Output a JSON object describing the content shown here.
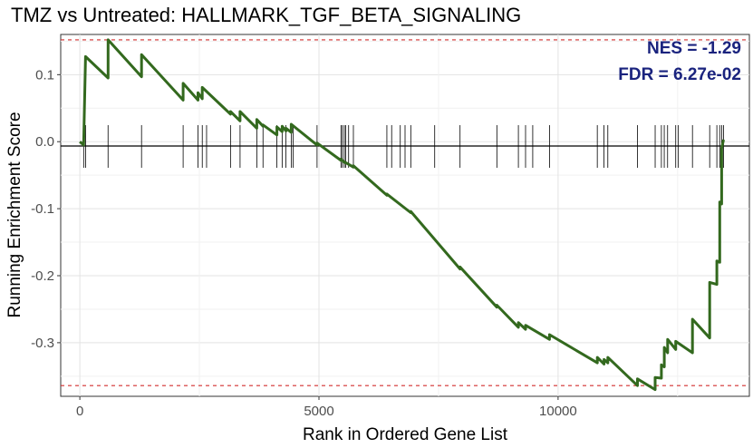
{
  "chart_data": {
    "type": "line",
    "title": "TMZ vs Untreated: HALLMARK_TGF_BETA_SIGNALING",
    "xlabel": "Rank in Ordered Gene List",
    "ylabel": "Running Enrichment Score",
    "xlim": [
      -400,
      14000
    ],
    "ylim": [
      -0.38,
      0.16
    ],
    "x_ticks": [
      0,
      5000,
      10000
    ],
    "x_tick_labels": [
      "0",
      "5000",
      "10000"
    ],
    "y_ticks": [
      0.1,
      0.0,
      -0.1,
      -0.2,
      -0.3
    ],
    "y_tick_labels": [
      "0.1",
      "0.0",
      "-0.1",
      "-0.2",
      "-0.3"
    ],
    "grid": true,
    "nes_label": "NES = -1.29",
    "fdr_label": "FDR = 6.27e-02",
    "reference_lines": [
      0.152,
      -0.364
    ],
    "colors": {
      "curve": "#33691e",
      "reference": "#d32f2f",
      "stats": "#1a237e",
      "hits": "#000000"
    },
    "hits": [
      80,
      120,
      590,
      1290,
      2160,
      2470,
      2560,
      2650,
      3150,
      3350,
      3700,
      3830,
      4120,
      4230,
      4310,
      4420,
      4460,
      4960,
      5460,
      5490,
      5530,
      5560,
      5620,
      5720,
      6420,
      6520,
      6700,
      6800,
      6920,
      7420,
      7950,
      8720,
      9170,
      9320,
      9470,
      9820,
      10820,
      10960,
      11040,
      11660,
      12030,
      12160,
      12220,
      12290,
      12460,
      12510,
      12810,
      13170,
      13320,
      13380,
      13420,
      13460
    ],
    "series": [
      {
        "points": [
          [
            0,
            0.0
          ],
          [
            80,
            -0.005
          ],
          [
            120,
            0.127
          ],
          [
            590,
            0.095
          ],
          [
            590,
            0.152
          ],
          [
            1290,
            0.097
          ],
          [
            1290,
            0.13
          ],
          [
            2160,
            0.062
          ],
          [
            2160,
            0.087
          ],
          [
            2470,
            0.062
          ],
          [
            2470,
            0.073
          ],
          [
            2560,
            0.064
          ],
          [
            2560,
            0.081
          ],
          [
            3150,
            0.041
          ],
          [
            3150,
            0.045
          ],
          [
            3350,
            0.031
          ],
          [
            3350,
            0.045
          ],
          [
            3700,
            0.02
          ],
          [
            3700,
            0.033
          ],
          [
            3830,
            0.023
          ],
          [
            3830,
            0.025
          ],
          [
            4120,
            0.01
          ],
          [
            4120,
            0.022
          ],
          [
            4230,
            0.015
          ],
          [
            4230,
            0.023
          ],
          [
            4310,
            0.016
          ],
          [
            4310,
            0.02
          ],
          [
            4420,
            0.014
          ],
          [
            4420,
            0.026
          ],
          [
            4960,
            -0.005
          ],
          [
            4960,
            -0.002
          ],
          [
            5460,
            -0.028
          ],
          [
            5460,
            -0.026
          ],
          [
            5530,
            -0.031
          ],
          [
            5530,
            -0.03
          ],
          [
            5720,
            -0.038
          ],
          [
            5720,
            -0.036
          ],
          [
            6420,
            -0.08
          ],
          [
            6420,
            -0.078
          ],
          [
            6920,
            -0.106
          ],
          [
            6920,
            -0.104
          ],
          [
            7950,
            -0.19
          ],
          [
            7950,
            -0.187
          ],
          [
            8720,
            -0.247
          ],
          [
            8720,
            -0.244
          ],
          [
            9170,
            -0.277
          ],
          [
            9170,
            -0.27
          ],
          [
            9320,
            -0.28
          ],
          [
            9320,
            -0.274
          ],
          [
            9820,
            -0.295
          ],
          [
            9820,
            -0.288
          ],
          [
            10820,
            -0.33
          ],
          [
            10820,
            -0.322
          ],
          [
            10960,
            -0.332
          ],
          [
            10960,
            -0.325
          ],
          [
            11040,
            -0.33
          ],
          [
            11040,
            -0.322
          ],
          [
            11660,
            -0.364
          ],
          [
            11660,
            -0.354
          ],
          [
            12030,
            -0.37
          ],
          [
            12030,
            -0.352
          ],
          [
            12160,
            -0.353
          ],
          [
            12160,
            -0.333
          ],
          [
            12220,
            -0.336
          ],
          [
            12220,
            -0.307
          ],
          [
            12290,
            -0.315
          ],
          [
            12290,
            -0.295
          ],
          [
            12460,
            -0.31
          ],
          [
            12460,
            -0.298
          ],
          [
            12810,
            -0.315
          ],
          [
            12810,
            -0.265
          ],
          [
            13170,
            -0.293
          ],
          [
            13170,
            -0.21
          ],
          [
            13320,
            -0.213
          ],
          [
            13320,
            -0.178
          ],
          [
            13380,
            -0.18
          ],
          [
            13380,
            -0.09
          ],
          [
            13420,
            -0.093
          ],
          [
            13420,
            -0.01
          ],
          [
            13460,
            0.003
          ]
        ]
      }
    ]
  }
}
